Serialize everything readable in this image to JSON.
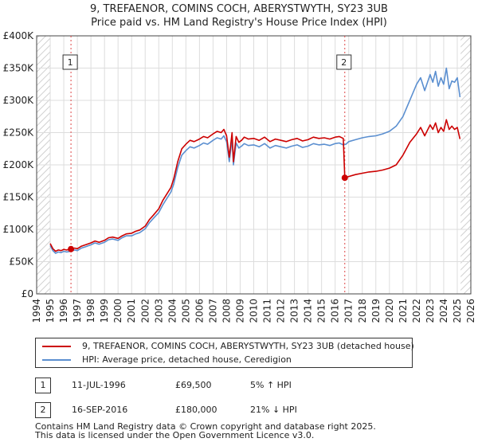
{
  "title": {
    "line1": "9, TREFAENOR, COMINS COCH, ABERYSTWYTH, SY23 3UB",
    "line2": "Price paid vs. HM Land Registry's House Price Index (HPI)"
  },
  "colors": {
    "property": "#cc0000",
    "hpi": "#5b8fd0",
    "hatch": "#d8d8d8",
    "grid": "#dddddd",
    "marker_line": "#dd4444"
  },
  "chart_data": {
    "type": "line",
    "title": "9, TREFAENOR, COMINS COCH, ABERYSTWYTH, SY23 3UB - Price paid vs. HM Land Registry's House Price Index (HPI)",
    "xlabel": "",
    "ylabel": "",
    "xlim": [
      1994,
      2026
    ],
    "ylim": [
      0,
      400000
    ],
    "x_ticks": [
      "1994",
      "1995",
      "1996",
      "1997",
      "1998",
      "1999",
      "2000",
      "2001",
      "2002",
      "2003",
      "2004",
      "2005",
      "2006",
      "2007",
      "2008",
      "2009",
      "2010",
      "2011",
      "2012",
      "2013",
      "2014",
      "2015",
      "2016",
      "2017",
      "2018",
      "2019",
      "2020",
      "2021",
      "2022",
      "2023",
      "2024",
      "2025",
      "2026"
    ],
    "y_ticks": [
      {
        "value": 0,
        "label": "£0"
      },
      {
        "value": 50000,
        "label": "£50K"
      },
      {
        "value": 100000,
        "label": "£100K"
      },
      {
        "value": 150000,
        "label": "£150K"
      },
      {
        "value": 200000,
        "label": "£200K"
      },
      {
        "value": 250000,
        "label": "£250K"
      },
      {
        "value": 300000,
        "label": "£300K"
      },
      {
        "value": 350000,
        "label": "£350K"
      },
      {
        "value": 400000,
        "label": "£400K"
      }
    ],
    "grid": true,
    "hatched_ranges": [
      [
        1994,
        1995
      ],
      [
        2025.25,
        2026
      ]
    ],
    "series": [
      {
        "name": "9, TREFAENOR, COMINS COCH, ABERYSTWYTH, SY23 3UB (detached house)",
        "color": "#cc0000",
        "x": [
          1995.0,
          1995.2,
          1995.4,
          1995.6,
          1995.8,
          1996.0,
          1996.2,
          1996.53,
          1996.8,
          1997.0,
          1997.3,
          1997.6,
          1998.0,
          1998.3,
          1998.6,
          1999.0,
          1999.3,
          1999.6,
          2000.0,
          2000.3,
          2000.6,
          2001.0,
          2001.3,
          2001.6,
          2002.0,
          2002.3,
          2002.6,
          2003.0,
          2003.3,
          2003.6,
          2003.9,
          2004.1,
          2004.4,
          2004.7,
          2005.0,
          2005.3,
          2005.6,
          2006.0,
          2006.3,
          2006.6,
          2007.0,
          2007.3,
          2007.6,
          2007.8,
          2008.0,
          2008.2,
          2008.4,
          2008.5,
          2008.7,
          2008.9,
          2009.1,
          2009.3,
          2009.6,
          2010.0,
          2010.4,
          2010.8,
          2011.2,
          2011.6,
          2012.0,
          2012.4,
          2012.8,
          2013.2,
          2013.6,
          2014.0,
          2014.4,
          2014.8,
          2015.2,
          2015.6,
          2016.0,
          2016.3,
          2016.6,
          2016.71,
          2017.0,
          2017.5,
          2018.0,
          2018.5,
          2019.0,
          2019.5,
          2020.0,
          2020.5,
          2021.0,
          2021.5,
          2022.0,
          2022.3,
          2022.6,
          2023.0,
          2023.2,
          2023.4,
          2023.6,
          2023.8,
          2024.0,
          2024.2,
          2024.4,
          2024.6,
          2024.8,
          2025.0,
          2025.2
        ],
        "y": [
          78000,
          70000,
          66000,
          68000,
          67000,
          69000,
          68000,
          69500,
          71000,
          70000,
          74000,
          76000,
          79000,
          82000,
          80000,
          83000,
          87000,
          88000,
          86000,
          90000,
          93000,
          94000,
          97000,
          99000,
          105000,
          115000,
          122000,
          132000,
          145000,
          155000,
          165000,
          178000,
          205000,
          225000,
          232000,
          238000,
          236000,
          240000,
          244000,
          242000,
          248000,
          252000,
          250000,
          255000,
          245000,
          212000,
          250000,
          205000,
          244000,
          235000,
          238000,
          243000,
          240000,
          241000,
          238000,
          243000,
          236000,
          240000,
          238000,
          236000,
          239000,
          241000,
          237000,
          239000,
          243000,
          241000,
          242000,
          240000,
          243000,
          244000,
          241000,
          180000,
          182000,
          185000,
          187000,
          189000,
          190000,
          192000,
          195000,
          200000,
          215000,
          235000,
          248000,
          258000,
          245000,
          262000,
          255000,
          265000,
          250000,
          258000,
          252000,
          270000,
          255000,
          260000,
          255000,
          258000,
          240000
        ]
      },
      {
        "name": "HPI: Average price, detached house, Ceredigion",
        "color": "#5b8fd0",
        "x": [
          1995.0,
          1995.2,
          1995.4,
          1995.6,
          1995.8,
          1996.0,
          1996.2,
          1996.5,
          1996.8,
          1997.0,
          1997.3,
          1997.6,
          1998.0,
          1998.3,
          1998.6,
          1999.0,
          1999.3,
          1999.6,
          2000.0,
          2000.3,
          2000.6,
          2001.0,
          2001.3,
          2001.6,
          2002.0,
          2002.3,
          2002.6,
          2003.0,
          2003.3,
          2003.6,
          2003.9,
          2004.1,
          2004.4,
          2004.7,
          2005.0,
          2005.3,
          2005.6,
          2006.0,
          2006.3,
          2006.6,
          2007.0,
          2007.3,
          2007.6,
          2007.8,
          2008.0,
          2008.2,
          2008.4,
          2008.5,
          2008.7,
          2008.9,
          2009.1,
          2009.3,
          2009.6,
          2010.0,
          2010.4,
          2010.8,
          2011.2,
          2011.6,
          2012.0,
          2012.4,
          2012.8,
          2013.2,
          2013.6,
          2014.0,
          2014.4,
          2014.8,
          2015.2,
          2015.6,
          2016.0,
          2016.3,
          2016.6,
          2016.8,
          2017.0,
          2017.5,
          2018.0,
          2018.5,
          2019.0,
          2019.5,
          2020.0,
          2020.5,
          2021.0,
          2021.5,
          2022.0,
          2022.3,
          2022.6,
          2023.0,
          2023.2,
          2023.4,
          2023.6,
          2023.8,
          2024.0,
          2024.2,
          2024.4,
          2024.6,
          2024.8,
          2025.0,
          2025.2
        ],
        "y": [
          75000,
          67000,
          63000,
          65000,
          64000,
          66000,
          65000,
          66000,
          68000,
          67000,
          71000,
          73000,
          76000,
          79000,
          77000,
          80000,
          84000,
          85000,
          83000,
          87000,
          90000,
          90000,
          93000,
          95000,
          101000,
          110000,
          117000,
          126000,
          138000,
          148000,
          158000,
          170000,
          196000,
          215000,
          222000,
          228000,
          226000,
          230000,
          234000,
          232000,
          238000,
          242000,
          240000,
          245000,
          236000,
          205000,
          240000,
          200000,
          234000,
          226000,
          229000,
          233000,
          230000,
          231000,
          228000,
          233000,
          226000,
          230000,
          228000,
          226000,
          229000,
          231000,
          227000,
          229000,
          233000,
          231000,
          232000,
          230000,
          233000,
          234000,
          231000,
          232000,
          236000,
          239000,
          242000,
          244000,
          245000,
          248000,
          252000,
          260000,
          275000,
          300000,
          325000,
          335000,
          315000,
          340000,
          328000,
          345000,
          322000,
          335000,
          325000,
          350000,
          318000,
          330000,
          328000,
          335000,
          305000
        ]
      }
    ],
    "sales": [
      {
        "num": "1",
        "x": 1996.53,
        "y": 69500
      },
      {
        "num": "2",
        "x": 2016.71,
        "y": 180000
      }
    ]
  },
  "legend": {
    "property_label": "9, TREFAENOR, COMINS COCH, ABERYSTWYTH, SY23 3UB (detached house)",
    "hpi_label": "HPI: Average price, detached house, Ceredigion"
  },
  "sales_table": [
    {
      "num": "1",
      "date": "11-JUL-1996",
      "price": "£69,500",
      "hpi": "5% ↑ HPI"
    },
    {
      "num": "2",
      "date": "16-SEP-2016",
      "price": "£180,000",
      "hpi": "21% ↓ HPI"
    }
  ],
  "footer": {
    "line1": "Contains HM Land Registry data © Crown copyright and database right 2025.",
    "line2": "This data is licensed under the Open Government Licence v3.0."
  }
}
